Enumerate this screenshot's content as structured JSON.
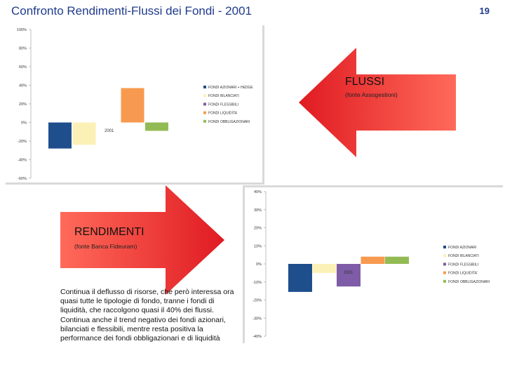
{
  "page": {
    "title": "Confronto Rendimenti-Flussi dei Fondi - 2001",
    "page_number": "19"
  },
  "flussi_arrow": {
    "label": "FLUSSI",
    "source": "(fonte Assogestioni)",
    "color": "#e5252a"
  },
  "rendimenti_arrow": {
    "label": "RENDIMENTI",
    "source": "(fonte Banca Fideuram)",
    "color": "#e5252a"
  },
  "body_text": {
    "lines": [
      "Continua il deflusso di risorse, che però interessa ora",
      "quasi tutte le tipologie di fondo, tranne i fondi di",
      "liquidità, che raccolgono quasi il 40% dei flussi.",
      "Continua anche il trend negativo dei fondi azionari,",
      "bilanciati e flessibili, mentre resta positiva la",
      "performance dei fondi obbligazionari e di liquidità"
    ]
  },
  "chart_data": [
    {
      "type": "bar",
      "categories": [
        "2001"
      ],
      "series": [
        {
          "name": "FONDI AZIONARI + HEDGE",
          "values": [
            -28
          ],
          "color": "#1f4e8c"
        },
        {
          "name": "FONDI BILANCIATI",
          "values": [
            -24
          ],
          "color": "#fbf1b6"
        },
        {
          "name": "FONDI FLESSIBILI",
          "values": [
            0
          ],
          "color": "#7e5ca7"
        },
        {
          "name": "FONDI LIQUIDITA",
          "values": [
            37
          ],
          "color": "#f79a4f"
        },
        {
          "name": "FONDI OBBLIGAZIONARI",
          "values": [
            -9
          ],
          "color": "#93bb55"
        }
      ],
      "y_ticks": [
        "100%",
        "80%",
        "60%",
        "40%",
        "20%",
        "0%",
        "-20%",
        "-40%",
        "-60%"
      ],
      "ylim": [
        -60,
        100
      ],
      "legend_position": "right"
    },
    {
      "type": "bar",
      "categories": [
        "2001"
      ],
      "series": [
        {
          "name": "FONDI AZIONARI",
          "values": [
            -15.5
          ],
          "color": "#1f4e8c"
        },
        {
          "name": "FONDI BILANCIATI",
          "values": [
            -5
          ],
          "color": "#fbf1b6"
        },
        {
          "name": "FONDI FLESSIBILI",
          "values": [
            -12.5
          ],
          "color": "#7e5ca7"
        },
        {
          "name": "FONDI LIQUIDITA'",
          "values": [
            4
          ],
          "color": "#f79a4f"
        },
        {
          "name": "FONDI OBBLIGAZIONARI",
          "values": [
            4
          ],
          "color": "#93bb55"
        }
      ],
      "y_ticks": [
        "40%",
        "30%",
        "20%",
        "10%",
        "0%",
        "-10%",
        "-20%",
        "-30%",
        "-40%"
      ],
      "ylim": [
        -40,
        40
      ],
      "legend_position": "right"
    }
  ]
}
